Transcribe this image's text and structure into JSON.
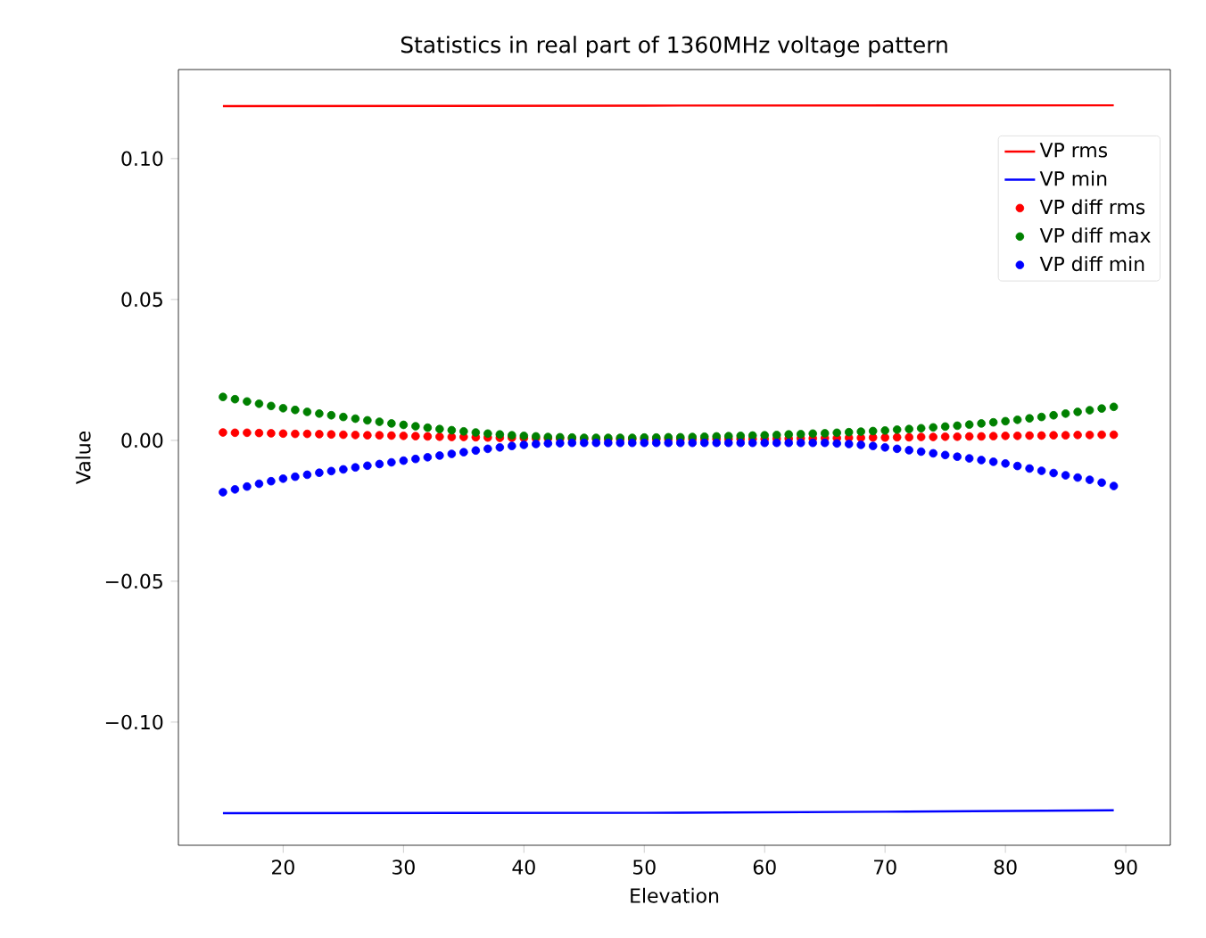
{
  "chart_data": {
    "type": "scatter",
    "title": "Statistics in real part of 1360MHz voltage pattern",
    "xlabel": "Elevation",
    "ylabel": "Value",
    "x": [
      15,
      16,
      17,
      18,
      19,
      20,
      21,
      22,
      23,
      24,
      25,
      26,
      27,
      28,
      29,
      30,
      31,
      32,
      33,
      34,
      35,
      36,
      37,
      38,
      39,
      40,
      41,
      42,
      43,
      44,
      45,
      46,
      47,
      48,
      49,
      50,
      51,
      52,
      53,
      54,
      55,
      56,
      57,
      58,
      59,
      60,
      61,
      62,
      63,
      64,
      65,
      66,
      67,
      68,
      69,
      70,
      71,
      72,
      73,
      74,
      75,
      76,
      77,
      78,
      79,
      80,
      81,
      82,
      83,
      84,
      85,
      86,
      87,
      88,
      89
    ],
    "xlim": [
      11.3,
      93.7
    ],
    "xticks": [
      20,
      30,
      40,
      50,
      60,
      70,
      80,
      90
    ],
    "ylim": [
      -0.1437,
      0.1316
    ],
    "yticks": [
      {
        "value": -0.1,
        "label": "−0.10"
      },
      {
        "value": -0.05,
        "label": "−0.05"
      },
      {
        "value": 0,
        "label": "0.00"
      },
      {
        "value": 0.05,
        "label": "0.05"
      },
      {
        "value": 0.1,
        "label": "0.10"
      }
    ],
    "legend": "top right",
    "series": [
      {
        "name": "VP rms",
        "type": "line",
        "color": "#ff0000",
        "x": [
          15,
          50,
          89
        ],
        "values": [
          0.1186,
          0.1188,
          0.1189
        ]
      },
      {
        "name": "VP min",
        "type": "line",
        "color": "#0000ff",
        "x": [
          15,
          50,
          70,
          89
        ],
        "values": [
          -0.1323,
          -0.1322,
          -0.1318,
          -0.1313
        ]
      },
      {
        "name": "VP diff rms",
        "color": "#ff0000",
        "values": [
          0.0028,
          0.0027,
          0.0027,
          0.0026,
          0.0025,
          0.0024,
          0.0023,
          0.0023,
          0.0022,
          0.0021,
          0.002,
          0.0019,
          0.0018,
          0.0018,
          0.0017,
          0.0016,
          0.0015,
          0.0014,
          0.0013,
          0.0012,
          0.0012,
          0.0011,
          0.001,
          0.0009,
          0.0009,
          0.0008,
          0.0007,
          0.0007,
          0.0006,
          0.0006,
          0.0005,
          0.0005,
          0.0004,
          0.0004,
          0.0004,
          0.0004,
          0.0004,
          0.0004,
          0.0004,
          0.0004,
          0.0004,
          0.0005,
          0.0005,
          0.0005,
          0.0005,
          0.0005,
          0.0006,
          0.0006,
          0.0007,
          0.0007,
          0.0008,
          0.0008,
          0.0009,
          0.0009,
          0.001,
          0.001,
          0.0011,
          0.0011,
          0.0012,
          0.0012,
          0.0013,
          0.0013,
          0.0014,
          0.0014,
          0.0015,
          0.0016,
          0.0016,
          0.0017,
          0.0017,
          0.0018,
          0.0018,
          0.0019,
          0.0019,
          0.002,
          0.002
        ]
      },
      {
        "name": "VP diff max",
        "color": "#008000",
        "values": [
          0.0154,
          0.0146,
          0.0138,
          0.013,
          0.0122,
          0.0114,
          0.0108,
          0.0101,
          0.0095,
          0.0089,
          0.0083,
          0.0077,
          0.0071,
          0.0066,
          0.006,
          0.0055,
          0.005,
          0.0045,
          0.004,
          0.0036,
          0.0032,
          0.0028,
          0.0024,
          0.0021,
          0.0018,
          0.0016,
          0.0014,
          0.0012,
          0.0011,
          0.001,
          0.0009,
          0.0009,
          0.0009,
          0.0009,
          0.0009,
          0.001,
          0.001,
          0.0011,
          0.0011,
          0.0012,
          0.0013,
          0.0014,
          0.0015,
          0.0016,
          0.0017,
          0.0018,
          0.0019,
          0.0021,
          0.0022,
          0.0024,
          0.0025,
          0.0027,
          0.0029,
          0.0031,
          0.0033,
          0.0035,
          0.0038,
          0.004,
          0.0043,
          0.0046,
          0.0049,
          0.0052,
          0.0056,
          0.006,
          0.0064,
          0.0068,
          0.0073,
          0.0078,
          0.0083,
          0.0089,
          0.0095,
          0.0101,
          0.0107,
          0.0113,
          0.0119
        ]
      },
      {
        "name": "VP diff min",
        "color": "#0000ff",
        "values": [
          -0.0184,
          -0.0174,
          -0.0164,
          -0.0154,
          -0.0145,
          -0.0136,
          -0.0129,
          -0.0122,
          -0.0115,
          -0.0109,
          -0.0103,
          -0.0096,
          -0.009,
          -0.0084,
          -0.0078,
          -0.0072,
          -0.0066,
          -0.006,
          -0.0054,
          -0.0048,
          -0.0042,
          -0.0036,
          -0.003,
          -0.0025,
          -0.002,
          -0.0016,
          -0.0013,
          -0.0011,
          -0.001,
          -0.0009,
          -0.0009,
          -0.0009,
          -0.0009,
          -0.0009,
          -0.0009,
          -0.0009,
          -0.0009,
          -0.0009,
          -0.0009,
          -0.0009,
          -0.0009,
          -0.0009,
          -0.0009,
          -0.0009,
          -0.0009,
          -0.0009,
          -0.0009,
          -0.0009,
          -0.0009,
          -0.0009,
          -0.0009,
          -0.0011,
          -0.0013,
          -0.0016,
          -0.002,
          -0.0025,
          -0.003,
          -0.0035,
          -0.004,
          -0.0046,
          -0.0052,
          -0.0058,
          -0.0064,
          -0.007,
          -0.0076,
          -0.0082,
          -0.0091,
          -0.01,
          -0.0108,
          -0.0116,
          -0.0124,
          -0.0132,
          -0.014,
          -0.015,
          -0.0162
        ]
      }
    ]
  }
}
